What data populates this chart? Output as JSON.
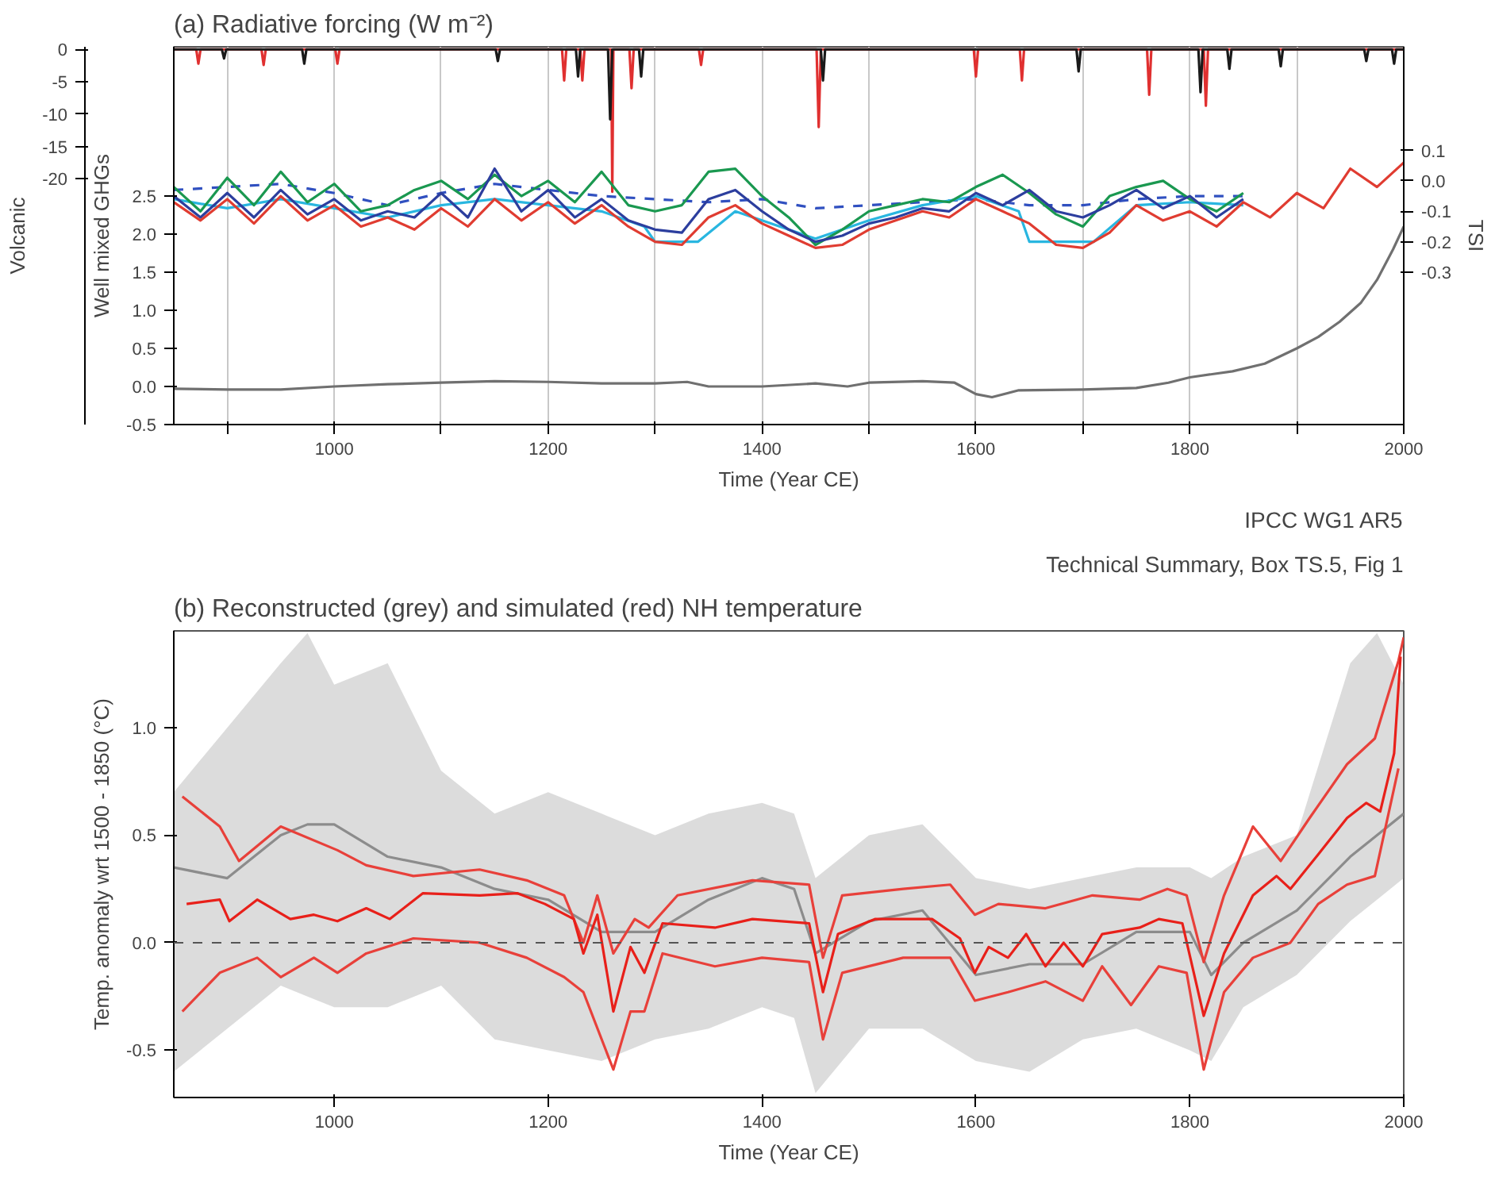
{
  "chart_data": [
    {
      "type": "line",
      "title": "(a)  Radiative forcing (W m⁻²)",
      "xlabel": "Time (Year CE)",
      "ylabel": "Well mixed GHGs",
      "y2label": "TSI",
      "y3label": "Volcanic",
      "xlim": [
        850,
        2000
      ],
      "xticks": [
        {
          "value": 900,
          "label": null
        },
        1000,
        {
          "value": 1100,
          "label": null
        },
        1200,
        {
          "value": 1300,
          "label": null
        },
        1400,
        {
          "value": 1500,
          "label": null
        },
        1600,
        {
          "value": 1700,
          "label": null
        },
        1800,
        {
          "value": 1900,
          "label": null
        },
        2000
      ],
      "ylim": [
        -0.5,
        4.46
      ],
      "yticks": [
        -0.5,
        {
          "value": 0,
          "label": "0.0"
        },
        0.5,
        {
          "value": 1,
          "label": "1.0"
        },
        1.5,
        {
          "value": 2,
          "label": "2.0"
        },
        2.5
      ],
      "y2lim": [
        -0.8,
        0.44
      ],
      "y2ticks": [
        -0.3,
        -0.2,
        -0.1,
        {
          "value": 0,
          "label": "0.0"
        },
        0.1
      ],
      "y3lim": [
        -58,
        0.4
      ],
      "y3ticks": [
        -20,
        -15,
        -10,
        -5,
        0
      ],
      "grid": "x",
      "annotations": [
        "IPCC WG1 AR5",
        "Technical Summary, Box TS.5, Fig 1"
      ],
      "series": [
        {
          "axis": "y3",
          "color": "#e03030",
          "x": [
            850,
            871,
            873,
            875,
            932,
            934,
            936,
            1001,
            1003,
            1005,
            1213,
            1215,
            1217,
            1230,
            1232,
            1234,
            1259,
            1260,
            1261,
            1276,
            1278,
            1280,
            1341,
            1343,
            1345,
            1451,
            1453,
            1455,
            1598,
            1600,
            1602,
            1641,
            1643,
            1645,
            1760,
            1762,
            1764,
            1813,
            1815,
            1817,
            2000
          ],
          "values": [
            0,
            0,
            -2.2,
            0,
            0,
            -2.4,
            0,
            0,
            -2.2,
            0,
            0,
            -4.8,
            0,
            0,
            -4.8,
            0,
            0,
            -22,
            0,
            0,
            -6,
            0,
            0,
            -2.4,
            0,
            0,
            -12,
            0,
            0,
            -4.2,
            0,
            0,
            -4.8,
            0,
            0,
            -7,
            0,
            0,
            -8.7,
            0,
            0
          ]
        },
        {
          "axis": "y3",
          "color": "#1a1a1a",
          "x": [
            850,
            895,
            897,
            899,
            970,
            972,
            974,
            1151,
            1153,
            1155,
            1226,
            1228,
            1230,
            1256,
            1258,
            1260,
            1285,
            1287,
            1289,
            1455,
            1457,
            1459,
            1694,
            1696,
            1698,
            1808,
            1810,
            1812,
            1835,
            1837,
            1839,
            1883,
            1885,
            1887,
            1963,
            1965,
            1967,
            1989,
            1991,
            1993,
            2000
          ],
          "values": [
            0,
            0,
            -1.4,
            0,
            0,
            -2.2,
            0,
            0,
            -1.8,
            0,
            0,
            -4.2,
            0,
            0,
            -10.8,
            0,
            0,
            -4.2,
            0,
            0,
            -4.8,
            0,
            0,
            -3.4,
            0,
            0,
            -6.6,
            0,
            0,
            -3.0,
            0,
            0,
            -2.6,
            0,
            0,
            -1.8,
            0,
            0,
            -2.2,
            0,
            0
          ]
        },
        {
          "axis": "y2",
          "color": "#3050c0",
          "line_style": "dashed",
          "x": [
            850,
            900,
            950,
            1000,
            1050,
            1100,
            1150,
            1200,
            1250,
            1300,
            1350,
            1400,
            1450,
            1500,
            1550,
            1600,
            1650,
            1700,
            1750,
            1800,
            1850
          ],
          "values": [
            -0.03,
            -0.02,
            -0.01,
            -0.04,
            -0.08,
            -0.04,
            -0.01,
            -0.03,
            -0.05,
            -0.06,
            -0.07,
            -0.06,
            -0.09,
            -0.08,
            -0.07,
            -0.06,
            -0.08,
            -0.08,
            -0.06,
            -0.05,
            -0.05
          ]
        },
        {
          "axis": "y2",
          "color": "#29b6e0",
          "x": [
            850,
            900,
            950,
            1000,
            1050,
            1100,
            1150,
            1200,
            1250,
            1290,
            1300,
            1340,
            1375,
            1400,
            1450,
            1500,
            1550,
            1600,
            1640,
            1650,
            1710,
            1750,
            1800,
            1850
          ],
          "values": [
            -0.06,
            -0.09,
            -0.06,
            -0.09,
            -0.12,
            -0.08,
            -0.06,
            -0.08,
            -0.1,
            -0.15,
            -0.2,
            -0.2,
            -0.1,
            -0.13,
            -0.19,
            -0.13,
            -0.08,
            -0.05,
            -0.1,
            -0.2,
            -0.2,
            -0.08,
            -0.07,
            -0.08
          ]
        },
        {
          "axis": "y2",
          "color": "#1a9850",
          "x": [
            850,
            875,
            900,
            925,
            950,
            975,
            1000,
            1025,
            1050,
            1075,
            1100,
            1125,
            1150,
            1175,
            1200,
            1225,
            1250,
            1275,
            1300,
            1325,
            1350,
            1375,
            1400,
            1425,
            1450,
            1475,
            1500,
            1525,
            1550,
            1575,
            1600,
            1625,
            1650,
            1675,
            1700,
            1725,
            1750,
            1775,
            1800,
            1825,
            1850
          ],
          "values": [
            -0.02,
            -0.1,
            0.01,
            -0.08,
            0.03,
            -0.07,
            -0.01,
            -0.1,
            -0.08,
            -0.03,
            0.0,
            -0.06,
            0.02,
            -0.05,
            0.0,
            -0.07,
            0.03,
            -0.08,
            -0.1,
            -0.08,
            0.03,
            0.04,
            -0.05,
            -0.12,
            -0.21,
            -0.16,
            -0.1,
            -0.08,
            -0.06,
            -0.07,
            -0.02,
            0.02,
            -0.04,
            -0.11,
            -0.15,
            -0.05,
            -0.02,
            0.0,
            -0.06,
            -0.1,
            -0.04
          ]
        },
        {
          "axis": "y2",
          "color": "#2c3e9e",
          "x": [
            850,
            875,
            900,
            925,
            950,
            975,
            1000,
            1025,
            1050,
            1075,
            1100,
            1125,
            1150,
            1175,
            1200,
            1225,
            1250,
            1275,
            1300,
            1325,
            1350,
            1375,
            1400,
            1425,
            1450,
            1475,
            1500,
            1525,
            1550,
            1575,
            1600,
            1625,
            1650,
            1675,
            1700,
            1725,
            1750,
            1775,
            1800,
            1825,
            1850
          ],
          "values": [
            -0.05,
            -0.12,
            -0.04,
            -0.12,
            -0.03,
            -0.11,
            -0.06,
            -0.13,
            -0.1,
            -0.12,
            -0.04,
            -0.12,
            0.04,
            -0.1,
            -0.03,
            -0.12,
            -0.06,
            -0.13,
            -0.16,
            -0.17,
            -0.06,
            -0.03,
            -0.1,
            -0.16,
            -0.2,
            -0.18,
            -0.14,
            -0.12,
            -0.09,
            -0.1,
            -0.04,
            -0.08,
            -0.03,
            -0.1,
            -0.12,
            -0.08,
            -0.03,
            -0.09,
            -0.05,
            -0.12,
            -0.06
          ]
        },
        {
          "axis": "y2",
          "color": "#e03c31",
          "x": [
            850,
            875,
            900,
            925,
            950,
            975,
            1000,
            1025,
            1050,
            1075,
            1100,
            1125,
            1150,
            1175,
            1200,
            1225,
            1250,
            1275,
            1300,
            1325,
            1350,
            1375,
            1400,
            1425,
            1450,
            1475,
            1500,
            1525,
            1550,
            1575,
            1600,
            1625,
            1650,
            1675,
            1700,
            1725,
            1750,
            1775,
            1800,
            1825,
            1850,
            1875,
            1900,
            1925,
            1950,
            1975,
            2000
          ],
          "values": [
            -0.07,
            -0.13,
            -0.06,
            -0.14,
            -0.05,
            -0.13,
            -0.08,
            -0.15,
            -0.12,
            -0.16,
            -0.09,
            -0.15,
            -0.06,
            -0.13,
            -0.07,
            -0.14,
            -0.08,
            -0.15,
            -0.2,
            -0.21,
            -0.12,
            -0.08,
            -0.14,
            -0.18,
            -0.22,
            -0.21,
            -0.16,
            -0.13,
            -0.1,
            -0.12,
            -0.06,
            -0.1,
            -0.14,
            -0.21,
            -0.22,
            -0.17,
            -0.08,
            -0.13,
            -0.1,
            -0.15,
            -0.07,
            -0.12,
            -0.04,
            -0.09,
            0.04,
            -0.02,
            0.06
          ]
        },
        {
          "color": "#707070",
          "x": [
            850,
            900,
            950,
            1000,
            1050,
            1100,
            1150,
            1200,
            1250,
            1300,
            1330,
            1350,
            1400,
            1450,
            1480,
            1500,
            1550,
            1580,
            1600,
            1615,
            1640,
            1700,
            1750,
            1780,
            1800,
            1840,
            1870,
            1900,
            1920,
            1940,
            1960,
            1975,
            1990,
            2000
          ],
          "values": [
            -0.03,
            -0.04,
            -0.04,
            0.0,
            0.03,
            0.05,
            0.07,
            0.06,
            0.04,
            0.04,
            0.06,
            0.0,
            0.0,
            0.04,
            0.0,
            0.05,
            0.07,
            0.05,
            -0.1,
            -0.14,
            -0.05,
            -0.04,
            -0.02,
            0.05,
            0.12,
            0.2,
            0.3,
            0.5,
            0.65,
            0.85,
            1.1,
            1.4,
            1.8,
            2.1
          ]
        }
      ]
    },
    {
      "type": "line",
      "title": "(b)  Reconstructed (grey) and simulated (red) NH temperature",
      "xlabel": "Time (Year CE)",
      "ylabel": "Temp. anomaly wrt 1500 - 1850 (°C)",
      "xlim": [
        850,
        2000
      ],
      "xticks": [
        1000,
        1200,
        1400,
        1600,
        1800,
        2000
      ],
      "ylim": [
        -0.72,
        1.45
      ],
      "yticks": [
        -0.5,
        {
          "value": 0,
          "label": "0.0"
        },
        0.5,
        {
          "value": 1,
          "label": "1.0"
        }
      ],
      "grid": false,
      "ref_lines": [
        {
          "axis": "y",
          "value": 0,
          "label": null,
          "color": "#555555",
          "line_style": "dashed"
        }
      ],
      "series": [
        {
          "color": "#8c8c8c",
          "x": [
            850,
            900,
            950,
            975,
            1000,
            1050,
            1100,
            1150,
            1200,
            1250,
            1300,
            1350,
            1400,
            1430,
            1450,
            1500,
            1550,
            1600,
            1650,
            1700,
            1750,
            1800,
            1820,
            1850,
            1900,
            1950,
            1975,
            2000
          ],
          "values": [
            0.35,
            0.3,
            0.5,
            0.55,
            0.55,
            0.4,
            0.35,
            0.25,
            0.2,
            0.05,
            0.05,
            0.2,
            0.3,
            0.25,
            -0.05,
            0.1,
            0.15,
            -0.15,
            -0.1,
            -0.1,
            0.05,
            0.05,
            -0.15,
            0.0,
            0.15,
            0.4,
            0.5,
            0.6
          ],
          "upper": [
            0.7,
            1.0,
            1.3,
            1.44,
            1.2,
            1.3,
            0.8,
            0.6,
            0.7,
            0.6,
            0.5,
            0.6,
            0.65,
            0.6,
            0.3,
            0.5,
            0.55,
            0.3,
            0.25,
            0.3,
            0.35,
            0.35,
            0.3,
            0.4,
            0.5,
            1.3,
            1.44,
            1.2
          ],
          "lower": [
            -0.6,
            -0.4,
            -0.2,
            -0.25,
            -0.3,
            -0.3,
            -0.2,
            -0.45,
            -0.5,
            -0.55,
            -0.45,
            -0.4,
            -0.3,
            -0.35,
            -0.7,
            -0.4,
            -0.4,
            -0.55,
            -0.6,
            -0.45,
            -0.4,
            -0.5,
            -0.55,
            -0.3,
            -0.15,
            0.1,
            0.2,
            0.3
          ]
        },
        {
          "color": "#e8403a",
          "x": [
            858,
            893,
            911,
            950,
            1003,
            1030,
            1074,
            1136,
            1180,
            1215,
            1233,
            1246,
            1261,
            1281,
            1294,
            1321,
            1391,
            1444,
            1457,
            1475,
            1532,
            1576,
            1599,
            1621,
            1665,
            1709,
            1753,
            1779,
            1797,
            1813,
            1832,
            1859,
            1885,
            1912,
            1947,
            1973,
            1995,
            2000
          ],
          "values": [
            0.68,
            0.54,
            0.38,
            0.54,
            0.43,
            0.36,
            0.31,
            0.34,
            0.29,
            0.22,
            0.0,
            0.22,
            -0.05,
            0.11,
            0.07,
            0.22,
            0.29,
            0.27,
            -0.07,
            0.22,
            0.25,
            0.27,
            0.13,
            0.18,
            0.16,
            0.22,
            0.2,
            0.25,
            0.22,
            -0.09,
            0.22,
            0.54,
            0.38,
            0.58,
            0.83,
            0.95,
            1.31,
            1.42
          ]
        },
        {
          "color": "#e8403a",
          "x": [
            858,
            893,
            928,
            950,
            981,
            1003,
            1030,
            1074,
            1136,
            1180,
            1215,
            1233,
            1261,
            1277,
            1290,
            1307,
            1356,
            1400,
            1444,
            1457,
            1475,
            1532,
            1576,
            1599,
            1630,
            1665,
            1700,
            1718,
            1745,
            1771,
            1797,
            1813,
            1832,
            1859,
            1894,
            1920,
            1947,
            1973,
            1995
          ],
          "values": [
            -0.32,
            -0.14,
            -0.07,
            -0.16,
            -0.07,
            -0.14,
            -0.05,
            0.02,
            0.0,
            -0.07,
            -0.16,
            -0.23,
            -0.59,
            -0.32,
            -0.32,
            -0.05,
            -0.11,
            -0.07,
            -0.09,
            -0.45,
            -0.14,
            -0.07,
            -0.07,
            -0.27,
            -0.23,
            -0.18,
            -0.27,
            -0.11,
            -0.29,
            -0.11,
            -0.14,
            -0.59,
            -0.23,
            -0.07,
            0.0,
            0.18,
            0.27,
            0.31,
            0.81
          ]
        },
        {
          "color": "#e8201a",
          "x": [
            862,
            893,
            902,
            928,
            959,
            981,
            1003,
            1030,
            1052,
            1083,
            1136,
            1171,
            1197,
            1224,
            1233,
            1246,
            1261,
            1277,
            1290,
            1307,
            1356,
            1391,
            1444,
            1457,
            1471,
            1506,
            1559,
            1585,
            1599,
            1612,
            1630,
            1647,
            1665,
            1682,
            1700,
            1718,
            1753,
            1771,
            1793,
            1813,
            1832,
            1859,
            1881,
            1894,
            1920,
            1947,
            1965,
            1978,
            1991,
            1997
          ],
          "values": [
            0.18,
            0.2,
            0.1,
            0.2,
            0.11,
            0.13,
            0.1,
            0.16,
            0.11,
            0.23,
            0.22,
            0.23,
            0.18,
            0.11,
            -0.05,
            0.13,
            -0.32,
            -0.02,
            -0.14,
            0.09,
            0.07,
            0.11,
            0.09,
            -0.23,
            0.04,
            0.11,
            0.11,
            0.02,
            -0.14,
            -0.02,
            -0.07,
            0.04,
            -0.11,
            0.0,
            -0.11,
            0.04,
            0.07,
            0.11,
            0.09,
            -0.34,
            -0.05,
            0.22,
            0.31,
            0.25,
            0.41,
            0.58,
            0.65,
            0.61,
            0.88,
            1.33
          ]
        }
      ]
    }
  ]
}
